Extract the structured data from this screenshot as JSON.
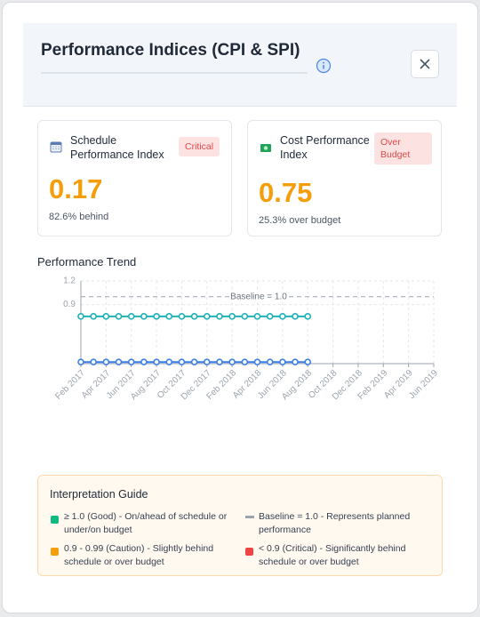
{
  "header": {
    "title": "Performance Indices (CPI & SPI)"
  },
  "cards": [
    {
      "label": "Schedule Performance Index",
      "badge": "Critical",
      "value": 0.17,
      "note": "82.6% behind"
    },
    {
      "label": "Cost Performance Index",
      "badge": "Over Budget",
      "value": 0.75,
      "note": "25.3% over budget"
    }
  ],
  "chart_data": {
    "type": "line",
    "title": "Performance Trend",
    "categories": [
      "Feb 2017",
      null,
      "Apr 2017",
      null,
      "Jun 2017",
      null,
      "Aug 2017",
      null,
      "Oct 2017",
      null,
      "Dec 2017",
      null,
      "Feb 2018",
      null,
      "Apr 2018",
      null,
      "Jun 2018",
      null,
      "Aug 2018",
      null,
      "Oct 2018",
      null,
      "Dec 2018",
      null,
      "Feb 2019",
      null,
      "Apr 2019",
      null,
      "Jun 2019"
    ],
    "series": [
      {
        "color": "#1fb2b8",
        "values": [
          0.75,
          0.75,
          0.75,
          0.75,
          0.75,
          0.75,
          0.75,
          0.75,
          0.75,
          0.75,
          0.75,
          0.75,
          0.75,
          0.75,
          0.75,
          0.75,
          0.75,
          0.75,
          0.75,
          null,
          null,
          null,
          null,
          null,
          null,
          null,
          null,
          null,
          null
        ]
      },
      {
        "color": "#3b7fe6",
        "values": [
          0.17,
          0.17,
          0.17,
          0.17,
          0.17,
          0.17,
          0.17,
          0.17,
          0.17,
          0.17,
          0.17,
          0.17,
          0.17,
          0.17,
          0.17,
          0.17,
          0.17,
          0.17,
          0.17,
          null,
          null,
          null,
          null,
          null,
          null,
          null,
          null,
          null,
          null
        ]
      }
    ],
    "baseline": {
      "value": 1.0,
      "label": "Baseline = 1.0"
    },
    "ylim": [
      0.15,
      1.2
    ],
    "yticks": [
      0.9,
      1.2
    ],
    "grid": true
  },
  "guide": {
    "title": "Interpretation Guide",
    "items": [
      {
        "text": "≥ 1.0 (Good) - On/ahead of schedule or under/on budget",
        "color": "#10b981"
      },
      {
        "text": "Baseline = 1.0 - Represents planned performance",
        "color": "#9ca3af"
      },
      {
        "text": "0.9 - 0.99 (Caution) - Slightly behind schedule or over budget",
        "color": "#f59e0b"
      },
      {
        "text": "< 0.9 (Critical) - Significantly behind schedule or over budget",
        "color": "#ef4444"
      }
    ]
  }
}
